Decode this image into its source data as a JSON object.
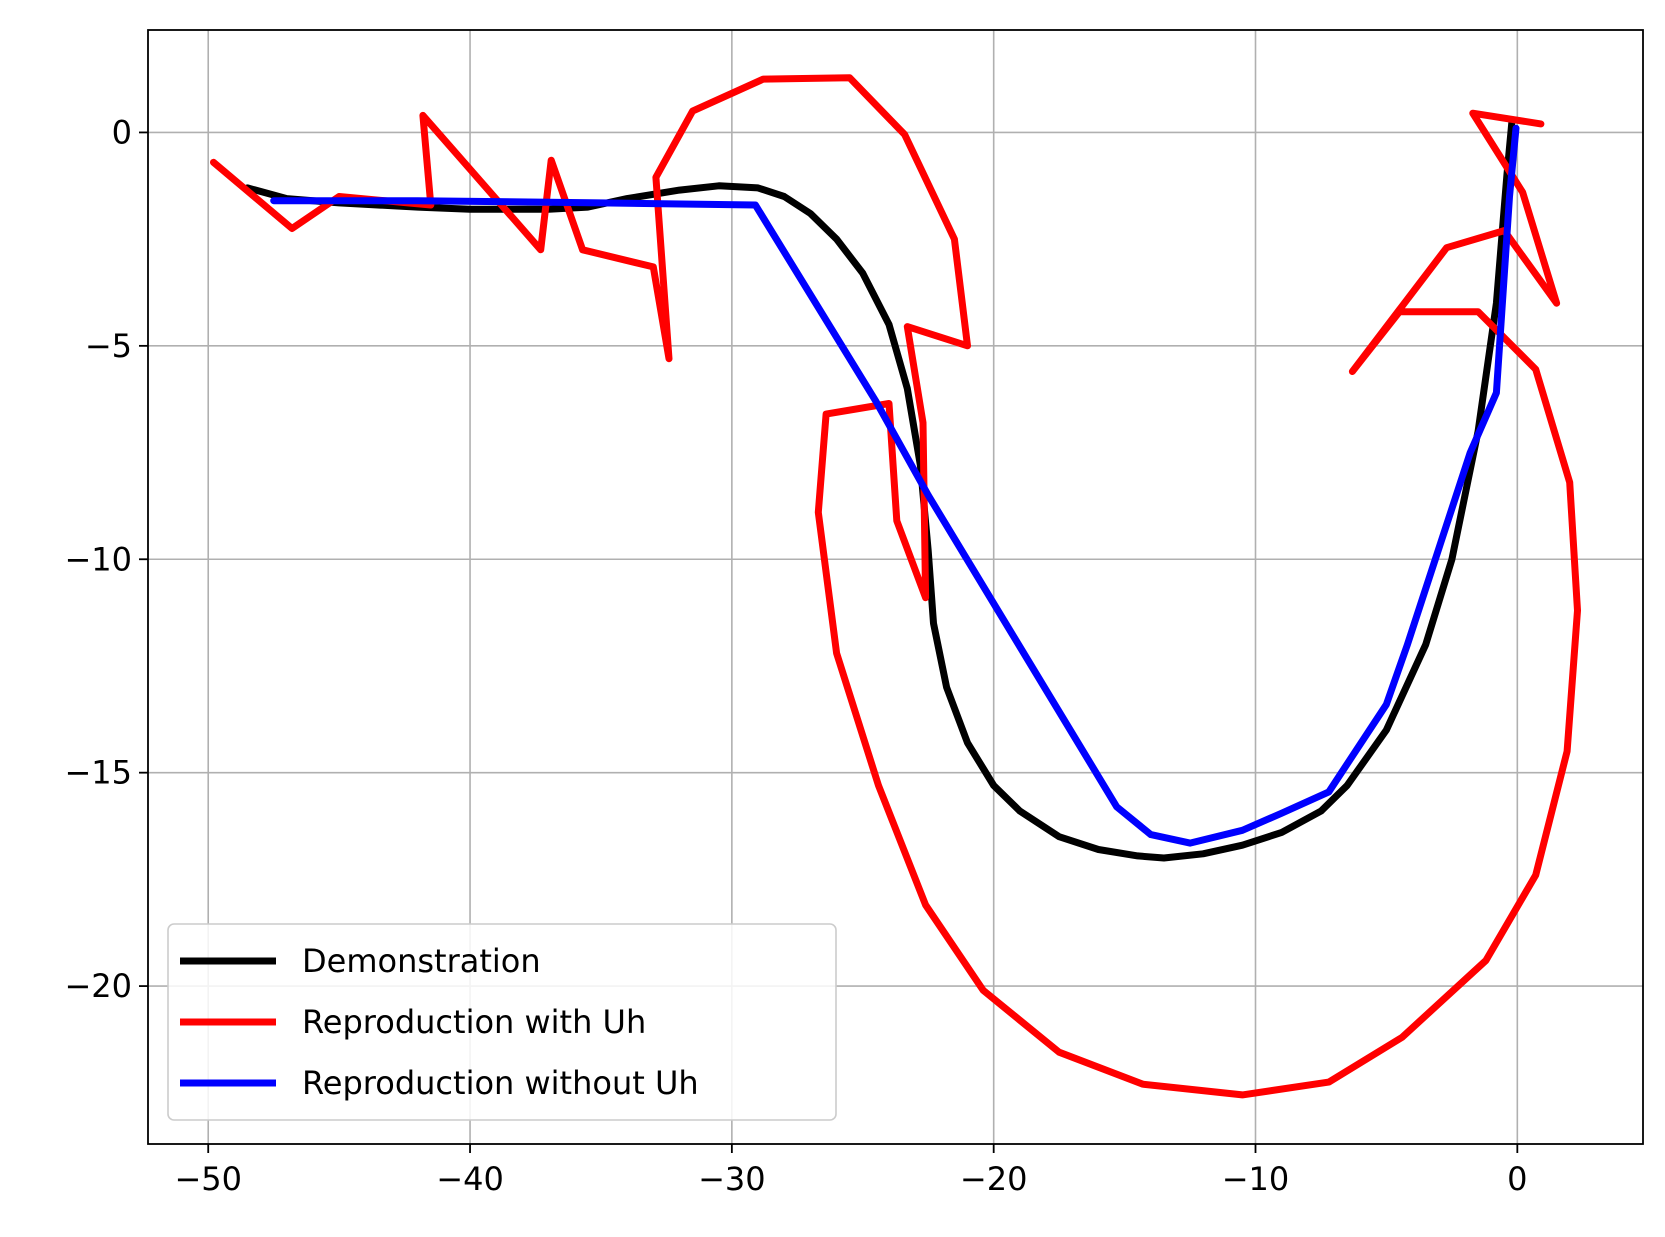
{
  "chart_data": {
    "type": "line",
    "title": "",
    "xlabel": "",
    "ylabel": "",
    "xlim": [
      -52.3,
      4.8
    ],
    "ylim": [
      -23.7,
      2.4
    ],
    "x_ticks": [
      -50,
      -40,
      -30,
      -20,
      -10,
      0
    ],
    "y_ticks": [
      0,
      -5,
      -10,
      -15,
      -20
    ],
    "x_tick_labels": [
      "−50",
      "−40",
      "−30",
      "−20",
      "−10",
      "0"
    ],
    "y_tick_labels": [
      "0",
      "−5",
      "−10",
      "−15",
      "−20"
    ],
    "grid": true,
    "legend_position": "lower-left",
    "series": [
      {
        "name": "Demonstration",
        "color": "#000000",
        "points": [
          [
            -48.5,
            -1.3
          ],
          [
            -47.0,
            -1.55
          ],
          [
            -45.0,
            -1.65
          ],
          [
            -42.0,
            -1.75
          ],
          [
            -40.0,
            -1.8
          ],
          [
            -37.0,
            -1.8
          ],
          [
            -35.5,
            -1.75
          ],
          [
            -34.0,
            -1.55
          ],
          [
            -32.0,
            -1.35
          ],
          [
            -30.5,
            -1.25
          ],
          [
            -29.0,
            -1.3
          ],
          [
            -28.0,
            -1.5
          ],
          [
            -27.0,
            -1.9
          ],
          [
            -26.0,
            -2.5
          ],
          [
            -25.0,
            -3.3
          ],
          [
            -24.0,
            -4.5
          ],
          [
            -23.3,
            -6.0
          ],
          [
            -22.8,
            -7.8
          ],
          [
            -22.5,
            -9.8
          ],
          [
            -22.3,
            -11.5
          ],
          [
            -21.8,
            -13.0
          ],
          [
            -21.0,
            -14.3
          ],
          [
            -20.0,
            -15.3
          ],
          [
            -19.0,
            -15.9
          ],
          [
            -17.5,
            -16.5
          ],
          [
            -16.0,
            -16.8
          ],
          [
            -14.5,
            -16.95
          ],
          [
            -13.5,
            -17.0
          ],
          [
            -12.0,
            -16.9
          ],
          [
            -10.5,
            -16.7
          ],
          [
            -9.0,
            -16.4
          ],
          [
            -7.5,
            -15.9
          ],
          [
            -6.5,
            -15.3
          ],
          [
            -5.0,
            -14.0
          ],
          [
            -3.5,
            -12.0
          ],
          [
            -2.5,
            -10.0
          ],
          [
            -1.5,
            -7.0
          ],
          [
            -0.8,
            -4.0
          ],
          [
            -0.4,
            -1.0
          ],
          [
            -0.2,
            0.3
          ]
        ]
      },
      {
        "name": "Reproduction with Uh",
        "color": "#ff0000",
        "points": [
          [
            -49.8,
            -0.7
          ],
          [
            -46.8,
            -2.25
          ],
          [
            -45.0,
            -1.5
          ],
          [
            -41.5,
            -1.7
          ],
          [
            -41.8,
            0.4
          ],
          [
            -37.3,
            -2.75
          ],
          [
            -36.9,
            -0.65
          ],
          [
            -35.7,
            -2.75
          ],
          [
            -33.0,
            -3.15
          ],
          [
            -32.4,
            -5.3
          ],
          [
            -32.9,
            -1.05
          ],
          [
            -31.5,
            0.5
          ],
          [
            -28.8,
            1.25
          ],
          [
            -25.5,
            1.28
          ],
          [
            -23.4,
            -0.05
          ],
          [
            -21.5,
            -2.5
          ],
          [
            -21.0,
            -5.0
          ],
          [
            -23.3,
            -4.55
          ],
          [
            -22.7,
            -6.8
          ],
          [
            -22.6,
            -10.9
          ],
          [
            -23.7,
            -9.1
          ],
          [
            -24.0,
            -6.35
          ],
          [
            -26.4,
            -6.6
          ],
          [
            -26.7,
            -8.9
          ],
          [
            -26.0,
            -12.2
          ],
          [
            -24.4,
            -15.3
          ],
          [
            -22.6,
            -18.1
          ],
          [
            -20.4,
            -20.1
          ],
          [
            -17.5,
            -21.55
          ],
          [
            -14.3,
            -22.3
          ],
          [
            -10.5,
            -22.55
          ],
          [
            -7.2,
            -22.25
          ],
          [
            -4.4,
            -21.2
          ],
          [
            -1.2,
            -19.4
          ],
          [
            0.7,
            -17.4
          ],
          [
            1.9,
            -14.5
          ],
          [
            2.3,
            -11.2
          ],
          [
            2.0,
            -8.2
          ],
          [
            0.7,
            -5.55
          ],
          [
            -1.5,
            -4.2
          ],
          [
            -4.5,
            -4.2
          ],
          [
            -6.3,
            -5.6
          ],
          [
            -2.7,
            -2.7
          ],
          [
            -0.5,
            -2.3
          ],
          [
            1.5,
            -4.0
          ],
          [
            0.2,
            -1.4
          ],
          [
            -1.7,
            0.45
          ],
          [
            0.9,
            0.2
          ]
        ]
      },
      {
        "name": "Reproduction without Uh",
        "color": "#0000ff",
        "points": [
          [
            -47.5,
            -1.6
          ],
          [
            -42.0,
            -1.6
          ],
          [
            -35.0,
            -1.65
          ],
          [
            -29.1,
            -1.7
          ],
          [
            -24.5,
            -6.3
          ],
          [
            -22.5,
            -8.5
          ],
          [
            -15.3,
            -15.8
          ],
          [
            -14.0,
            -16.45
          ],
          [
            -12.5,
            -16.65
          ],
          [
            -10.5,
            -16.35
          ],
          [
            -9.0,
            -15.95
          ],
          [
            -7.2,
            -15.45
          ],
          [
            -5.0,
            -13.4
          ],
          [
            -4.2,
            -12.0
          ],
          [
            -1.8,
            -7.5
          ],
          [
            -0.8,
            -6.1
          ],
          [
            -0.3,
            -1.5
          ],
          [
            -0.05,
            0.1
          ]
        ]
      }
    ]
  }
}
